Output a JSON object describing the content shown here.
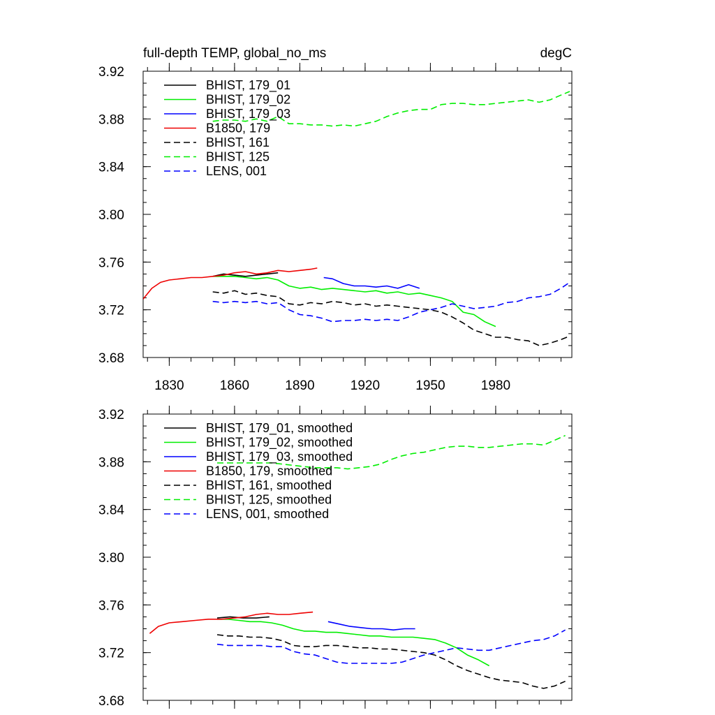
{
  "chart_data": [
    {
      "type": "line",
      "title_left": "full-depth TEMP, global_no_ms",
      "title_right": "degC",
      "xlabel": "",
      "ylabel": "",
      "xlim": [
        1818,
        2015
      ],
      "ylim": [
        3.68,
        3.92
      ],
      "xticks": [
        1830,
        1860,
        1890,
        1920,
        1950,
        1980
      ],
      "xtick_labels": [
        "1830",
        "1860",
        "1890",
        "1920",
        "1950",
        "1980"
      ],
      "yticks": [
        3.68,
        3.72,
        3.76,
        3.8,
        3.84,
        3.88,
        3.92
      ],
      "ytick_labels": [
        "3.68",
        "3.72",
        "3.76",
        "3.80",
        "3.84",
        "3.88",
        "3.92"
      ],
      "legend_position": "top-left",
      "series": [
        {
          "name": "BHIST, 179_01",
          "color": "#000000",
          "dashed": false,
          "x": [
            1850,
            1855,
            1860,
            1865,
            1870,
            1875,
            1880
          ],
          "y": [
            3.748,
            3.75,
            3.749,
            3.748,
            3.749,
            3.75,
            3.751
          ]
        },
        {
          "name": "BHIST, 179_02",
          "color": "#00ee00",
          "dashed": false,
          "x": [
            1850,
            1855,
            1860,
            1865,
            1870,
            1875,
            1880,
            1885,
            1890,
            1895,
            1900,
            1905,
            1910,
            1915,
            1920,
            1925,
            1930,
            1935,
            1940,
            1945,
            1950,
            1955,
            1960,
            1965,
            1970,
            1975,
            1980
          ],
          "y": [
            3.748,
            3.748,
            3.748,
            3.747,
            3.746,
            3.747,
            3.745,
            3.74,
            3.738,
            3.739,
            3.737,
            3.738,
            3.737,
            3.736,
            3.735,
            3.736,
            3.734,
            3.735,
            3.733,
            3.734,
            3.732,
            3.73,
            3.727,
            3.718,
            3.716,
            3.71,
            3.706
          ]
        },
        {
          "name": "BHIST, 179_03",
          "color": "#0000ff",
          "dashed": false,
          "x": [
            1901,
            1905,
            1910,
            1915,
            1920,
            1925,
            1930,
            1935,
            1940,
            1945
          ],
          "y": [
            3.747,
            3.746,
            3.742,
            3.74,
            3.74,
            3.739,
            3.74,
            3.738,
            3.741,
            3.738
          ]
        },
        {
          "name": "B1850, 179",
          "color": "#ee0000",
          "dashed": false,
          "x": [
            1818,
            1822,
            1826,
            1830,
            1835,
            1840,
            1845,
            1850,
            1855,
            1860,
            1865,
            1870,
            1875,
            1880,
            1885,
            1890,
            1895,
            1898
          ],
          "y": [
            3.729,
            3.738,
            3.743,
            3.745,
            3.746,
            3.747,
            3.747,
            3.748,
            3.749,
            3.751,
            3.752,
            3.75,
            3.751,
            3.753,
            3.752,
            3.753,
            3.754,
            3.755
          ]
        },
        {
          "name": "BHIST, 161",
          "color": "#000000",
          "dashed": true,
          "x": [
            1850,
            1855,
            1860,
            1865,
            1870,
            1875,
            1880,
            1885,
            1890,
            1895,
            1900,
            1905,
            1910,
            1915,
            1920,
            1925,
            1930,
            1935,
            1940,
            1945,
            1950,
            1955,
            1960,
            1965,
            1970,
            1975,
            1980,
            1985,
            1990,
            1995,
            2000,
            2005,
            2010,
            2014
          ],
          "y": [
            3.735,
            3.734,
            3.736,
            3.733,
            3.734,
            3.732,
            3.731,
            3.725,
            3.724,
            3.726,
            3.725,
            3.727,
            3.726,
            3.724,
            3.725,
            3.723,
            3.724,
            3.723,
            3.722,
            3.721,
            3.72,
            3.718,
            3.714,
            3.709,
            3.703,
            3.7,
            3.697,
            3.697,
            3.695,
            3.694,
            3.69,
            3.692,
            3.695,
            3.698
          ]
        },
        {
          "name": "BHIST, 125",
          "color": "#00ee00",
          "dashed": true,
          "x": [
            1850,
            1855,
            1860,
            1865,
            1870,
            1875,
            1880,
            1885,
            1890,
            1895,
            1900,
            1905,
            1910,
            1915,
            1920,
            1925,
            1930,
            1935,
            1940,
            1945,
            1950,
            1955,
            1960,
            1965,
            1970,
            1975,
            1980,
            1985,
            1990,
            1995,
            2000,
            2005,
            2010,
            2014
          ],
          "y": [
            3.878,
            3.879,
            3.879,
            3.878,
            3.88,
            3.878,
            3.882,
            3.876,
            3.876,
            3.875,
            3.875,
            3.874,
            3.875,
            3.874,
            3.876,
            3.878,
            3.882,
            3.885,
            3.887,
            3.888,
            3.888,
            3.892,
            3.893,
            3.893,
            3.892,
            3.892,
            3.893,
            3.894,
            3.895,
            3.896,
            3.894,
            3.896,
            3.9,
            3.903
          ]
        },
        {
          "name": "LENS, 001",
          "color": "#0000ff",
          "dashed": true,
          "x": [
            1850,
            1855,
            1860,
            1865,
            1870,
            1875,
            1880,
            1885,
            1890,
            1895,
            1900,
            1905,
            1910,
            1915,
            1920,
            1925,
            1930,
            1935,
            1940,
            1945,
            1950,
            1955,
            1960,
            1965,
            1970,
            1975,
            1980,
            1985,
            1990,
            1995,
            2000,
            2005,
            2010,
            2014
          ],
          "y": [
            3.727,
            3.726,
            3.727,
            3.726,
            3.727,
            3.725,
            3.726,
            3.72,
            3.716,
            3.715,
            3.713,
            3.71,
            3.711,
            3.711,
            3.712,
            3.711,
            3.712,
            3.711,
            3.714,
            3.718,
            3.72,
            3.722,
            3.725,
            3.723,
            3.721,
            3.722,
            3.723,
            3.726,
            3.727,
            3.73,
            3.731,
            3.733,
            3.738,
            3.743
          ]
        }
      ]
    },
    {
      "type": "line",
      "title_left": "",
      "title_right": "",
      "xlabel": "",
      "ylabel": "",
      "xlim": [
        1818,
        2015
      ],
      "ylim": [
        3.68,
        3.92
      ],
      "xticks": [
        1830,
        1860,
        1890,
        1920,
        1950,
        1980
      ],
      "xtick_labels": [],
      "yticks": [
        3.68,
        3.72,
        3.76,
        3.8,
        3.84,
        3.88,
        3.92
      ],
      "ytick_labels": [
        "3.68",
        "3.72",
        "3.76",
        "3.80",
        "3.84",
        "3.88",
        "3.92"
      ],
      "legend_position": "top-left",
      "series": [
        {
          "name": "BHIST, 179_01, smoothed",
          "color": "#000000",
          "dashed": false,
          "x": [
            1852,
            1858,
            1864,
            1870,
            1876
          ],
          "y": [
            3.749,
            3.75,
            3.749,
            3.749,
            3.75
          ]
        },
        {
          "name": "BHIST, 179_02, smoothed",
          "color": "#00ee00",
          "dashed": false,
          "x": [
            1852,
            1857,
            1862,
            1867,
            1872,
            1877,
            1882,
            1887,
            1892,
            1897,
            1902,
            1907,
            1912,
            1917,
            1922,
            1927,
            1932,
            1937,
            1942,
            1947,
            1952,
            1957,
            1962,
            1967,
            1972,
            1977
          ],
          "y": [
            3.748,
            3.748,
            3.747,
            3.746,
            3.746,
            3.745,
            3.743,
            3.74,
            3.738,
            3.738,
            3.737,
            3.737,
            3.736,
            3.735,
            3.734,
            3.734,
            3.733,
            3.733,
            3.733,
            3.732,
            3.731,
            3.728,
            3.724,
            3.718,
            3.714,
            3.709
          ]
        },
        {
          "name": "BHIST, 179_03, smoothed",
          "color": "#0000ff",
          "dashed": false,
          "x": [
            1903,
            1908,
            1913,
            1918,
            1923,
            1928,
            1933,
            1938,
            1943
          ],
          "y": [
            3.746,
            3.744,
            3.742,
            3.741,
            3.74,
            3.74,
            3.739,
            3.74,
            3.74
          ]
        },
        {
          "name": "B1850, 179, smoothed",
          "color": "#ee0000",
          "dashed": false,
          "x": [
            1821,
            1825,
            1830,
            1836,
            1842,
            1848,
            1854,
            1860,
            1865,
            1870,
            1875,
            1880,
            1885,
            1890,
            1896
          ],
          "y": [
            3.736,
            3.742,
            3.745,
            3.746,
            3.747,
            3.748,
            3.748,
            3.749,
            3.75,
            3.752,
            3.753,
            3.752,
            3.752,
            3.753,
            3.754
          ]
        },
        {
          "name": "BHIST, 161, smoothed",
          "color": "#000000",
          "dashed": true,
          "x": [
            1852,
            1857,
            1862,
            1867,
            1872,
            1877,
            1882,
            1887,
            1892,
            1897,
            1902,
            1907,
            1912,
            1917,
            1922,
            1927,
            1932,
            1937,
            1942,
            1947,
            1952,
            1957,
            1962,
            1967,
            1972,
            1977,
            1982,
            1987,
            1992,
            1997,
            2002,
            2007,
            2012
          ],
          "y": [
            3.735,
            3.734,
            3.734,
            3.733,
            3.733,
            3.732,
            3.73,
            3.726,
            3.725,
            3.725,
            3.726,
            3.726,
            3.725,
            3.724,
            3.724,
            3.723,
            3.723,
            3.722,
            3.721,
            3.72,
            3.718,
            3.714,
            3.709,
            3.705,
            3.702,
            3.699,
            3.697,
            3.696,
            3.695,
            3.692,
            3.69,
            3.692,
            3.696
          ]
        },
        {
          "name": "BHIST, 125, smoothed",
          "color": "#00ee00",
          "dashed": true,
          "x": [
            1852,
            1857,
            1862,
            1867,
            1872,
            1877,
            1882,
            1887,
            1892,
            1897,
            1902,
            1907,
            1912,
            1917,
            1922,
            1927,
            1932,
            1937,
            1942,
            1947,
            1952,
            1957,
            1962,
            1967,
            1972,
            1977,
            1982,
            1987,
            1992,
            1997,
            2002,
            2007,
            2012
          ],
          "y": [
            3.879,
            3.879,
            3.879,
            3.879,
            3.879,
            3.879,
            3.878,
            3.877,
            3.876,
            3.875,
            3.875,
            3.875,
            3.874,
            3.875,
            3.876,
            3.878,
            3.882,
            3.885,
            3.887,
            3.888,
            3.89,
            3.892,
            3.893,
            3.893,
            3.892,
            3.892,
            3.893,
            3.894,
            3.895,
            3.895,
            3.894,
            3.898,
            3.902
          ]
        },
        {
          "name": "LENS, 001, smoothed",
          "color": "#0000ff",
          "dashed": true,
          "x": [
            1852,
            1857,
            1862,
            1867,
            1872,
            1877,
            1882,
            1887,
            1892,
            1897,
            1902,
            1907,
            1912,
            1917,
            1922,
            1927,
            1932,
            1937,
            1942,
            1947,
            1952,
            1957,
            1962,
            1967,
            1972,
            1977,
            1982,
            1987,
            1992,
            1997,
            2002,
            2007,
            2012
          ],
          "y": [
            3.727,
            3.726,
            3.726,
            3.726,
            3.726,
            3.725,
            3.725,
            3.721,
            3.719,
            3.718,
            3.715,
            3.712,
            3.711,
            3.711,
            3.711,
            3.711,
            3.711,
            3.712,
            3.715,
            3.718,
            3.72,
            3.722,
            3.724,
            3.723,
            3.722,
            3.722,
            3.724,
            3.726,
            3.728,
            3.73,
            3.731,
            3.734,
            3.739
          ]
        }
      ]
    }
  ]
}
